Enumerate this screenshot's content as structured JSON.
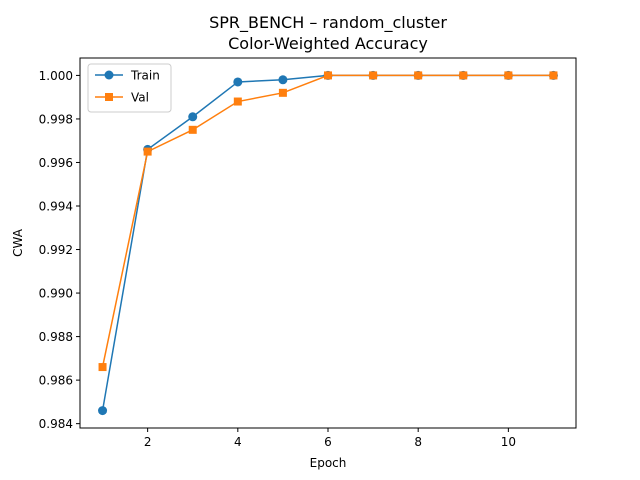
{
  "chart_data": {
    "type": "line",
    "title": "SPR_BENCH – random_cluster",
    "subtitle": "Color-Weighted Accuracy",
    "xlabel": "Epoch",
    "ylabel": "CWA",
    "xlim": [
      0.5,
      11.5
    ],
    "ylim": [
      0.9838,
      1.0008
    ],
    "xticks": [
      2,
      4,
      6,
      8,
      10
    ],
    "xtick_labels": [
      "2",
      "4",
      "6",
      "8",
      "10"
    ],
    "yticks": [
      0.984,
      0.986,
      0.988,
      0.99,
      0.992,
      0.994,
      0.996,
      0.998,
      1.0
    ],
    "ytick_labels": [
      "0.984",
      "0.986",
      "0.988",
      "0.990",
      "0.992",
      "0.994",
      "0.996",
      "0.998",
      "1.000"
    ],
    "grid": false,
    "legend": "top-left",
    "x": [
      1,
      2,
      3,
      4,
      5,
      6,
      7,
      8,
      9,
      10,
      11
    ],
    "series": [
      {
        "name": "Train",
        "color": "#1f77b4",
        "marker": "circle",
        "values": [
          0.9846,
          0.9966,
          0.9981,
          0.9997,
          0.9998,
          1.0,
          1.0,
          1.0,
          1.0,
          1.0,
          1.0
        ]
      },
      {
        "name": "Val",
        "color": "#ff7f0e",
        "marker": "square",
        "values": [
          0.9866,
          0.9965,
          0.9975,
          0.9988,
          0.9992,
          1.0,
          1.0,
          1.0,
          1.0,
          1.0,
          1.0
        ]
      }
    ]
  }
}
